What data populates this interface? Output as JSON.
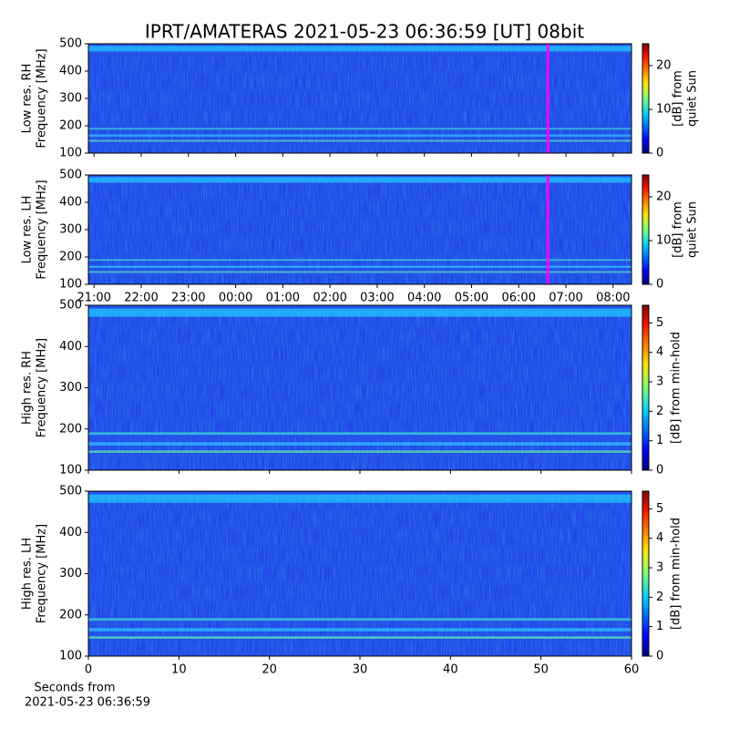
{
  "chart_data": [
    {
      "type": "heatmap",
      "title": "IPRT/AMATERAS 2021-05-23 06:36:59 [UT]   08bit",
      "ylabel": [
        "Low res. RH",
        "Frequency [MHz]"
      ],
      "ylim": [
        100,
        500
      ],
      "yticks": [
        100,
        200,
        300,
        400,
        500
      ],
      "xlim": [
        -0.12,
        11.39
      ],
      "xticks": [
        0,
        1,
        2,
        3,
        4,
        5,
        6,
        7,
        8,
        9,
        10,
        11
      ],
      "xtick_labels": false,
      "cursor_x": 9.617,
      "cursor_color": "#ff00ff",
      "colorbar_label": [
        "[dB] from",
        "quiet Sun"
      ],
      "clim": [
        0,
        25
      ],
      "cticks": [
        0,
        10,
        20
      ]
    },
    {
      "type": "heatmap",
      "ylabel": [
        "Low res. LH",
        "Frequency [MHz]"
      ],
      "ylim": [
        100,
        500
      ],
      "yticks": [
        100,
        200,
        300,
        400,
        500
      ],
      "xlim": [
        -0.12,
        11.39
      ],
      "xticks": [
        {
          "value": 0,
          "label": "21:00"
        },
        {
          "value": 1,
          "label": "22:00"
        },
        {
          "value": 2,
          "label": "23:00"
        },
        {
          "value": 3,
          "label": "00:00"
        },
        {
          "value": 4,
          "label": "01:00"
        },
        {
          "value": 5,
          "label": "02:00"
        },
        {
          "value": 6,
          "label": "03:00"
        },
        {
          "value": 7,
          "label": "04:00"
        },
        {
          "value": 8,
          "label": "05:00"
        },
        {
          "value": 9,
          "label": "06:00"
        },
        {
          "value": 10,
          "label": "07:00"
        },
        {
          "value": 11,
          "label": "08:00"
        }
      ],
      "xtick_labels": true,
      "cursor_x": 9.617,
      "cursor_color": "#ff00ff",
      "colorbar_label": [
        "[dB] from",
        "quiet Sun"
      ],
      "clim": [
        0,
        25
      ],
      "cticks": [
        0,
        10,
        20
      ]
    },
    {
      "type": "heatmap",
      "ylabel": [
        "High res. RH",
        "Frequency [MHz]"
      ],
      "ylim": [
        100,
        500
      ],
      "yticks": [
        100,
        200,
        300,
        400,
        500
      ],
      "xlim": [
        0,
        60
      ],
      "xticks": [
        0,
        10,
        20,
        30,
        40,
        50,
        60
      ],
      "xtick_labels": false,
      "colorbar_label": [
        "[dB] from min-hold"
      ],
      "clim": [
        0,
        5.6
      ],
      "cticks": [
        0,
        1,
        2,
        3,
        4,
        5
      ]
    },
    {
      "type": "heatmap",
      "ylabel": [
        "High res. LH",
        "Frequency [MHz]"
      ],
      "ylim": [
        100,
        500
      ],
      "yticks": [
        100,
        200,
        300,
        400,
        500
      ],
      "xlim": [
        0,
        60
      ],
      "xticks": [
        0,
        10,
        20,
        30,
        40,
        50,
        60
      ],
      "xtick_labels": true,
      "xlabel": [
        "Seconds from",
        "2021-05-23 06:36:59"
      ],
      "colorbar_label": [
        "[dB] from min-hold"
      ],
      "clim": [
        0,
        5.6
      ],
      "cticks": [
        0,
        1,
        2,
        3,
        4,
        5
      ]
    }
  ]
}
